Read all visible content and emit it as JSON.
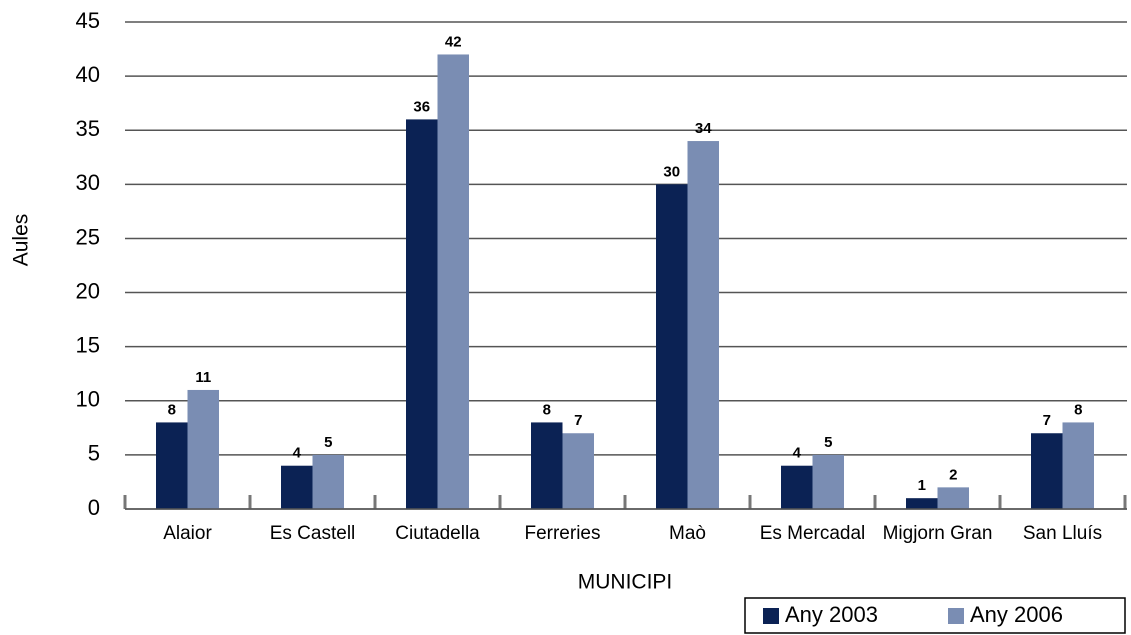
{
  "chart_data": {
    "type": "bar",
    "categories": [
      "Alaior",
      "Es Castell",
      "Ciutadella",
      "Ferreries",
      "Maò",
      "Es Mercadal",
      "Migjorn Gran",
      "San Lluís"
    ],
    "series": [
      {
        "name": "Any 2003",
        "color": "#0b2254",
        "values": [
          8,
          4,
          36,
          8,
          30,
          4,
          1,
          7
        ]
      },
      {
        "name": "Any 2006",
        "color": "#7a8db3",
        "values": [
          11,
          5,
          42,
          7,
          34,
          5,
          2,
          8
        ]
      }
    ],
    "ylim": [
      0,
      45
    ],
    "yticks": [
      0,
      5,
      10,
      15,
      20,
      25,
      30,
      35,
      40,
      45
    ],
    "grid": true,
    "ylabel": "Aules",
    "xlabel": "MUNICIPI",
    "legend": "bottom-right"
  }
}
